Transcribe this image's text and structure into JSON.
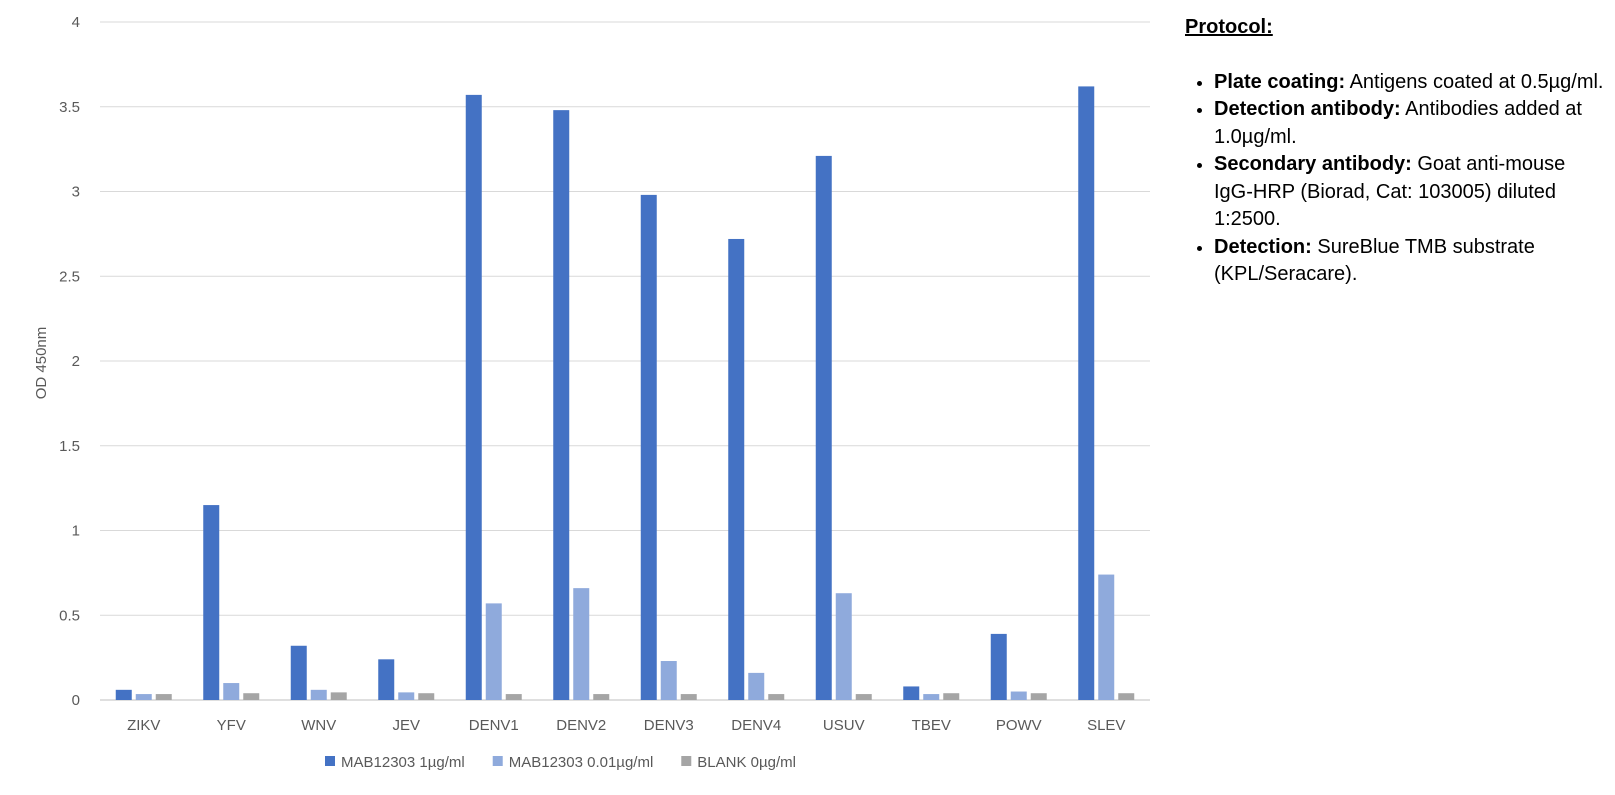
{
  "chart_data": {
    "type": "bar",
    "categories": [
      "ZIKV",
      "YFV",
      "WNV",
      "JEV",
      "DENV1",
      "DENV2",
      "DENV3",
      "DENV4",
      "USUV",
      "TBEV",
      "POWV",
      "SLEV"
    ],
    "series": [
      {
        "name": "MAB12303 1µg/ml",
        "color": "#4472c4",
        "values": [
          0.06,
          1.15,
          0.32,
          0.24,
          3.57,
          3.48,
          2.98,
          2.72,
          3.21,
          0.08,
          0.39,
          3.62
        ]
      },
      {
        "name": "MAB12303 0.01µg/ml",
        "color": "#8faadc",
        "values": [
          0.035,
          0.1,
          0.06,
          0.045,
          0.57,
          0.66,
          0.23,
          0.16,
          0.63,
          0.035,
          0.05,
          0.74
        ]
      },
      {
        "name": "BLANK 0µg/ml",
        "color": "#a5a5a5",
        "values": [
          0.035,
          0.04,
          0.045,
          0.04,
          0.035,
          0.035,
          0.035,
          0.035,
          0.035,
          0.04,
          0.04,
          0.04
        ]
      }
    ],
    "ylabel": "OD 450nm",
    "xlabel": "",
    "ylim": [
      0,
      4
    ],
    "yticks": [
      "0",
      "0.5",
      "1",
      "1.5",
      "2",
      "2.5",
      "3",
      "3.5",
      "4"
    ],
    "grid": true,
    "legend": "bottom"
  },
  "protocol": {
    "title": "Protocol:",
    "items": [
      {
        "label": "Plate coating:",
        "text": " Antigens coated at 0.5µg/ml."
      },
      {
        "label": "Detection antibody:",
        "text": " Antibodies added at 1.0µg/ml."
      },
      {
        "label": "Secondary antibody:",
        "text": " Goat anti-mouse IgG-HRP (Biorad, Cat: 103005) diluted 1:2500."
      },
      {
        "label": "Detection:",
        "text": " SureBlue TMB substrate (KPL/Seracare)."
      }
    ]
  }
}
